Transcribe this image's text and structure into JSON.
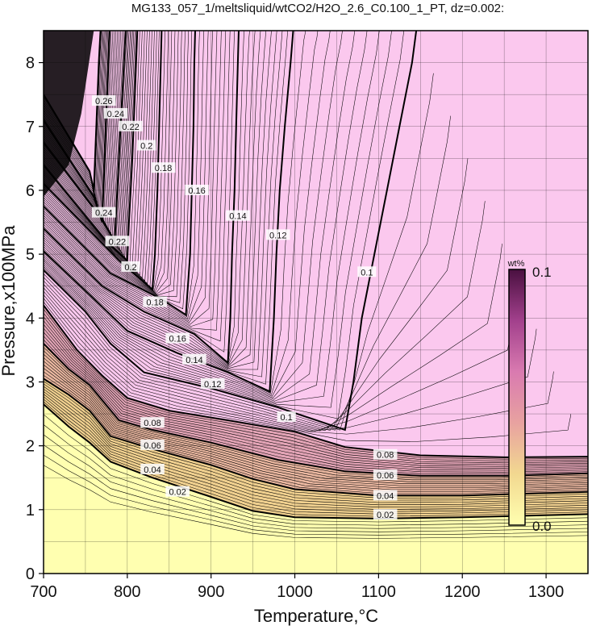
{
  "title": "MG133_057_1/meltsliquid/wtCO2/H2O_2.6_C0.100_1_PT, dz=0.002:",
  "chart_data": {
    "type": "heatmap",
    "title": "MG133_057_1/meltsliquid/wtCO2/H2O_2.6_C0.100_1_PT, dz=0.002:",
    "xlabel": "Temperature,°C",
    "ylabel": "Pressure,x100MPa",
    "xlim": [
      700,
      1350
    ],
    "ylim": [
      0,
      8.5
    ],
    "x_ticks": [
      "700",
      "800",
      "900",
      "1000",
      "1100",
      "1200",
      "1300"
    ],
    "y_ticks": [
      "0",
      "1",
      "2",
      "3",
      "4",
      "5",
      "6",
      "7",
      "8"
    ],
    "grid": true,
    "colorbar": {
      "unit": "wt%",
      "min_label": "0.0",
      "max_label": "0.1",
      "range": [
        0.0,
        0.1
      ],
      "colors": [
        "#ffffb0",
        "#f2d890",
        "#e8a2a0",
        "#d97ab0",
        "#a2408c",
        "#4a1040"
      ]
    },
    "saturated_color": "#fbc8ee",
    "contour_interval": 0.002,
    "major_contours": [
      {
        "level": 0.02,
        "label": "0.02",
        "points": [
          [
            700,
            2.65
          ],
          [
            730,
            2.3
          ],
          [
            755,
            2.05
          ],
          [
            780,
            1.75
          ],
          [
            830,
            1.5
          ],
          [
            900,
            1.2
          ],
          [
            950,
            0.98
          ],
          [
            1000,
            0.88
          ],
          [
            1100,
            0.86
          ],
          [
            1200,
            0.88
          ],
          [
            1350,
            0.93
          ]
        ]
      },
      {
        "level": 0.04,
        "label": "0.04",
        "points": [
          [
            700,
            3.05
          ],
          [
            730,
            2.8
          ],
          [
            755,
            2.55
          ],
          [
            780,
            2.15
          ],
          [
            830,
            1.95
          ],
          [
            900,
            1.7
          ],
          [
            950,
            1.48
          ],
          [
            1000,
            1.32
          ],
          [
            1100,
            1.22
          ],
          [
            1200,
            1.22
          ],
          [
            1350,
            1.28
          ]
        ]
      },
      {
        "level": 0.06,
        "label": "0.06",
        "points": [
          [
            700,
            3.6
          ],
          [
            730,
            3.2
          ],
          [
            755,
            2.95
          ],
          [
            790,
            2.4
          ],
          [
            830,
            2.25
          ],
          [
            900,
            2.05
          ],
          [
            980,
            1.78
          ],
          [
            1060,
            1.6
          ],
          [
            1150,
            1.53
          ],
          [
            1250,
            1.53
          ],
          [
            1350,
            1.57
          ]
        ]
      },
      {
        "level": 0.08,
        "label": "0.08",
        "points": [
          [
            700,
            4.2
          ],
          [
            740,
            3.5
          ],
          [
            770,
            3.1
          ],
          [
            800,
            2.75
          ],
          [
            850,
            2.55
          ],
          [
            920,
            2.4
          ],
          [
            1000,
            2.22
          ],
          [
            1060,
            1.98
          ],
          [
            1150,
            1.85
          ],
          [
            1250,
            1.82
          ],
          [
            1350,
            1.83
          ]
        ]
      },
      {
        "level": 0.1,
        "label": "0.1",
        "points": [
          [
            700,
            4.75
          ],
          [
            750,
            4.1
          ],
          [
            780,
            3.6
          ],
          [
            820,
            3.15
          ],
          [
            900,
            2.9
          ],
          [
            980,
            2.6
          ],
          [
            1060,
            2.25
          ],
          [
            1070,
            3.0
          ],
          [
            1080,
            4.0
          ],
          [
            1095,
            5.0
          ],
          [
            1110,
            6.0
          ],
          [
            1125,
            7.0
          ],
          [
            1140,
            8.0
          ],
          [
            1145,
            8.5
          ]
        ]
      },
      {
        "level": 0.12,
        "label": "0.12",
        "points": [
          [
            700,
            5.05
          ],
          [
            760,
            4.3
          ],
          [
            800,
            3.8
          ],
          [
            860,
            3.45
          ],
          [
            920,
            3.15
          ],
          [
            970,
            2.85
          ],
          [
            975,
            4.0
          ],
          [
            978,
            5.0
          ],
          [
            982,
            6.0
          ],
          [
            988,
            7.0
          ],
          [
            995,
            8.0
          ],
          [
            998,
            8.5
          ]
        ]
      },
      {
        "level": 0.14,
        "label": "0.14",
        "points": [
          [
            700,
            5.4
          ],
          [
            770,
            4.5
          ],
          [
            820,
            4.1
          ],
          [
            880,
            3.75
          ],
          [
            920,
            3.3
          ],
          [
            923,
            4.0
          ],
          [
            925,
            5.0
          ],
          [
            928,
            6.0
          ],
          [
            930,
            7.0
          ],
          [
            932,
            8.0
          ],
          [
            933,
            8.5
          ]
        ]
      },
      {
        "level": 0.16,
        "label": "0.16",
        "points": [
          [
            700,
            5.75
          ],
          [
            780,
            4.7
          ],
          [
            840,
            4.3
          ],
          [
            870,
            4.05
          ],
          [
            875,
            5.0
          ],
          [
            877,
            6.0
          ],
          [
            879,
            7.0
          ],
          [
            880,
            8.0
          ],
          [
            881,
            8.5
          ]
        ]
      },
      {
        "level": 0.18,
        "label": "0.18",
        "points": [
          [
            700,
            6.1
          ],
          [
            790,
            4.9
          ],
          [
            830,
            4.45
          ],
          [
            833,
            5.0
          ],
          [
            836,
            6.0
          ],
          [
            838,
            7.0
          ],
          [
            840,
            8.0
          ],
          [
            841,
            8.5
          ]
        ]
      },
      {
        "level": 0.2,
        "label": "0.2",
        "points": [
          [
            700,
            6.4
          ],
          [
            775,
            5.2
          ],
          [
            800,
            4.9
          ],
          [
            802,
            5.5
          ],
          [
            806,
            6.5
          ],
          [
            809,
            7.5
          ],
          [
            812,
            8.5
          ]
        ]
      },
      {
        "level": 0.22,
        "label": "0.22",
        "points": [
          [
            700,
            6.75
          ],
          [
            770,
            5.55
          ],
          [
            785,
            5.2
          ],
          [
            788,
            6.0
          ],
          [
            792,
            7.0
          ],
          [
            796,
            8.0
          ],
          [
            798,
            8.5
          ]
        ]
      },
      {
        "level": 0.24,
        "label": "0.24",
        "points": [
          [
            700,
            7.1
          ],
          [
            760,
            5.9
          ],
          [
            770,
            5.5
          ],
          [
            773,
            6.5
          ],
          [
            776,
            7.5
          ],
          [
            779,
            8.5
          ]
        ]
      },
      {
        "level": 0.26,
        "label": "0.26",
        "points": [
          [
            700,
            7.5
          ],
          [
            755,
            6.3
          ],
          [
            760,
            6.0
          ],
          [
            763,
            7.0
          ],
          [
            766,
            8.0
          ],
          [
            768,
            8.5
          ]
        ]
      }
    ],
    "contour_labels": [
      {
        "text": "0.02",
        "x": 1108,
        "y": 0.92
      },
      {
        "text": "0.04",
        "x": 1108,
        "y": 1.22
      },
      {
        "text": "0.06",
        "x": 1108,
        "y": 1.54
      },
      {
        "text": "0.08",
        "x": 1108,
        "y": 1.86
      },
      {
        "text": "0.02",
        "x": 860,
        "y": 1.28
      },
      {
        "text": "0.04",
        "x": 830,
        "y": 1.63
      },
      {
        "text": "0.06",
        "x": 830,
        "y": 2.01
      },
      {
        "text": "0.08",
        "x": 830,
        "y": 2.36
      },
      {
        "text": "0.1",
        "x": 990,
        "y": 2.45
      },
      {
        "text": "0.12",
        "x": 902,
        "y": 2.97
      },
      {
        "text": "0.14",
        "x": 880,
        "y": 3.35
      },
      {
        "text": "0.16",
        "x": 860,
        "y": 3.68
      },
      {
        "text": "0.1",
        "x": 1086,
        "y": 4.72
      },
      {
        "text": "0.12",
        "x": 980,
        "y": 5.3
      },
      {
        "text": "0.14",
        "x": 932,
        "y": 5.6
      },
      {
        "text": "0.16",
        "x": 883,
        "y": 6.0
      },
      {
        "text": "0.18",
        "x": 833,
        "y": 4.25
      },
      {
        "text": "0.18",
        "x": 843,
        "y": 6.35
      },
      {
        "text": "0.2",
        "x": 804,
        "y": 4.8
      },
      {
        "text": "0.2",
        "x": 823,
        "y": 6.7
      },
      {
        "text": "0.22",
        "x": 788,
        "y": 5.2
      },
      {
        "text": "0.22",
        "x": 804,
        "y": 7.0
      },
      {
        "text": "0.24",
        "x": 772,
        "y": 5.65
      },
      {
        "text": "0.24",
        "x": 786,
        "y": 7.2
      },
      {
        "text": "0.26",
        "x": 772,
        "y": 7.4
      }
    ]
  }
}
